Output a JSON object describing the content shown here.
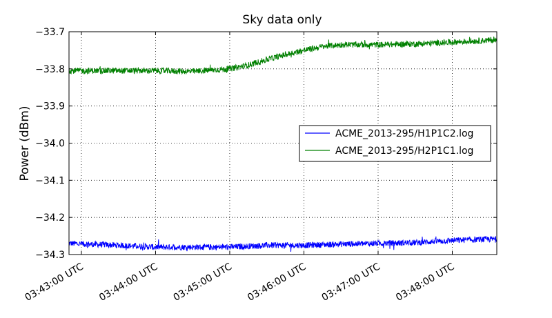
{
  "chart_data": {
    "type": "line",
    "title": "Sky data only",
    "xlabel": "",
    "ylabel": "Power (dBm)",
    "x_tick_labels": [
      "03:43:00 UTC",
      "03:44:00 UTC",
      "03:45:00 UTC",
      "03:46:00 UTC",
      "03:47:00 UTC",
      "03:48:00 UTC"
    ],
    "x_ticks": [
      "03:43:00",
      "03:44:00",
      "03:45:00",
      "03:46:00",
      "03:47:00",
      "03:48:00"
    ],
    "xlim": [
      "03:42:50",
      "03:48:36"
    ],
    "ylim": [
      -34.3,
      -33.7
    ],
    "y_ticks": [
      -34.3,
      -34.2,
      -34.1,
      -34.0,
      -33.9,
      -33.8,
      -33.7
    ],
    "y_tick_labels": [
      "−34.3",
      "−34.2",
      "−34.1",
      "−34.0",
      "−33.9",
      "−33.8",
      "−33.7"
    ],
    "grid": true,
    "legend_position": "center-right",
    "series": [
      {
        "name": "ACME_2013-295/H1P1C2.log",
        "color": "#0000ff",
        "x": [
          "03:42:50",
          "03:43:30",
          "03:44:00",
          "03:44:30",
          "03:45:00",
          "03:45:30",
          "03:46:00",
          "03:46:30",
          "03:47:00",
          "03:47:30",
          "03:48:00",
          "03:48:36"
        ],
        "y": [
          -34.27,
          -34.275,
          -34.28,
          -34.28,
          -34.28,
          -34.275,
          -34.275,
          -34.272,
          -34.27,
          -34.268,
          -34.262,
          -34.258
        ]
      },
      {
        "name": "ACME_2013-295/H2P1C1.log",
        "color": "#008000",
        "x": [
          "03:42:50",
          "03:43:30",
          "03:44:00",
          "03:44:30",
          "03:45:00",
          "03:45:15",
          "03:45:30",
          "03:45:45",
          "03:46:00",
          "03:46:15",
          "03:46:30",
          "03:47:00",
          "03:47:30",
          "03:48:00",
          "03:48:36"
        ],
        "y": [
          -33.805,
          -33.805,
          -33.805,
          -33.807,
          -33.8,
          -33.79,
          -33.775,
          -33.762,
          -33.75,
          -33.74,
          -33.735,
          -33.735,
          -33.733,
          -33.728,
          -33.722
        ]
      }
    ]
  }
}
